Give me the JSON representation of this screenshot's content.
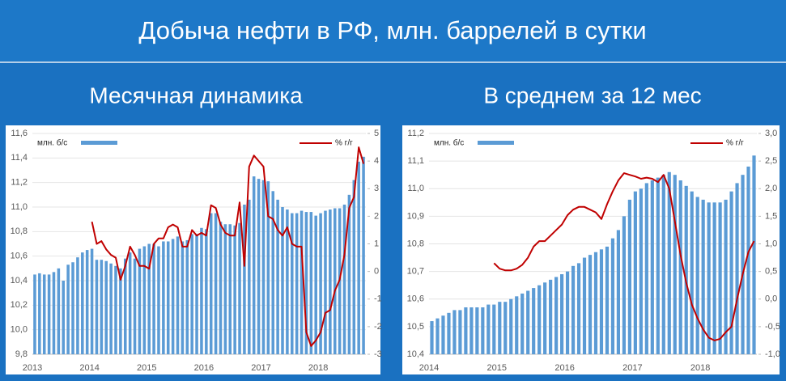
{
  "title": "Добыча нефти в РФ, млн. баррелей в сутки",
  "chart_data": [
    {
      "type": "bar-line",
      "title": "Месячная динамика",
      "categories": [
        "2013",
        null,
        null,
        null,
        null,
        null,
        null,
        null,
        null,
        null,
        null,
        null,
        "2014",
        null,
        null,
        null,
        null,
        null,
        null,
        null,
        null,
        null,
        null,
        null,
        "2015",
        null,
        null,
        null,
        null,
        null,
        null,
        null,
        null,
        null,
        null,
        null,
        "2016",
        null,
        null,
        null,
        null,
        null,
        null,
        null,
        null,
        null,
        null,
        null,
        "2017",
        null,
        null,
        null,
        null,
        null,
        null,
        null,
        null,
        null,
        null,
        null,
        "2018",
        null,
        null,
        null,
        null,
        null,
        null,
        null,
        null,
        null
      ],
      "series": [
        {
          "name": "млн. б/с",
          "color": "#5b9bd5",
          "kind": "bar",
          "values": [
            10.45,
            10.46,
            10.45,
            10.45,
            10.47,
            10.5,
            10.4,
            10.53,
            10.55,
            10.59,
            10.63,
            10.65,
            10.66,
            10.57,
            10.57,
            10.56,
            10.54,
            10.52,
            10.5,
            10.58,
            10.63,
            10.58,
            10.66,
            10.68,
            10.7,
            10.7,
            10.68,
            10.72,
            10.72,
            10.74,
            10.76,
            10.72,
            10.73,
            10.78,
            10.78,
            10.83,
            10.82,
            10.95,
            10.95,
            10.88,
            10.86,
            10.86,
            10.85,
            10.87,
            11.02,
            11.06,
            11.25,
            11.23,
            11.22,
            11.21,
            11.13,
            11.06,
            11.0,
            10.98,
            10.95,
            10.95,
            10.97,
            10.96,
            10.96,
            10.93,
            10.95,
            10.97,
            10.98,
            10.99,
            10.99,
            11.02,
            11.1,
            11.22,
            11.37,
            11.41
          ]
        },
        {
          "name": "% г/г",
          "color": "#c00000",
          "kind": "line",
          "axis": "y2",
          "values": [
            null,
            null,
            null,
            null,
            null,
            null,
            null,
            null,
            null,
            null,
            null,
            null,
            1.8,
            1.0,
            1.1,
            0.8,
            0.6,
            0.5,
            -0.3,
            0.2,
            0.9,
            0.6,
            0.2,
            0.2,
            0.1,
            1.0,
            1.2,
            1.2,
            1.6,
            1.7,
            1.6,
            0.9,
            0.9,
            1.5,
            1.3,
            1.4,
            1.3,
            2.4,
            2.3,
            1.7,
            1.4,
            1.3,
            1.3,
            2.5,
            0.2,
            3.8,
            4.2,
            4.0,
            3.8,
            2.0,
            1.9,
            1.5,
            1.3,
            1.6,
            1.0,
            0.9,
            0.9,
            -2.2,
            -2.7,
            -2.5,
            -2.2,
            -1.5,
            -1.4,
            -0.7,
            -0.3,
            0.6,
            2.3,
            2.7,
            4.5,
            3.9
          ]
        }
      ],
      "ylim": [
        9.8,
        11.6
      ],
      "yticks": [
        {
          "value": 9.8,
          "label": "9,8"
        },
        {
          "value": 10.0,
          "label": "10,0"
        },
        {
          "value": 10.2,
          "label": "10,2"
        },
        {
          "value": 10.4,
          "label": "10,4"
        },
        {
          "value": 10.6,
          "label": "10,6"
        },
        {
          "value": 10.8,
          "label": "10,8"
        },
        {
          "value": 11.0,
          "label": "11,0"
        },
        {
          "value": 11.2,
          "label": "11,2"
        },
        {
          "value": 11.4,
          "label": "11,4"
        },
        {
          "value": 11.6,
          "label": "11,6"
        }
      ],
      "y2lim": [
        -3,
        5
      ],
      "y2ticks": [
        -3,
        -2,
        -1,
        0,
        1,
        2,
        3,
        4,
        5
      ],
      "grid": true
    },
    {
      "type": "bar-line",
      "title": "В среднем за 12 мес",
      "categories": [
        "2014",
        null,
        null,
        null,
        null,
        null,
        null,
        null,
        null,
        null,
        null,
        null,
        "2015",
        null,
        null,
        null,
        null,
        null,
        null,
        null,
        null,
        null,
        null,
        null,
        "2016",
        null,
        null,
        null,
        null,
        null,
        null,
        null,
        null,
        null,
        null,
        null,
        "2017",
        null,
        null,
        null,
        null,
        null,
        null,
        null,
        null,
        null,
        null,
        null,
        "2018",
        null,
        null,
        null,
        null,
        null,
        null,
        null,
        null,
        null
      ],
      "series": [
        {
          "name": "млн. б/с",
          "color": "#5b9bd5",
          "kind": "bar",
          "values": [
            10.52,
            10.53,
            10.54,
            10.55,
            10.56,
            10.56,
            10.57,
            10.57,
            10.57,
            10.57,
            10.58,
            10.58,
            10.59,
            10.59,
            10.6,
            10.61,
            10.62,
            10.63,
            10.64,
            10.65,
            10.66,
            10.67,
            10.68,
            10.69,
            10.7,
            10.72,
            10.73,
            10.75,
            10.76,
            10.77,
            10.78,
            10.79,
            10.82,
            10.85,
            10.9,
            10.96,
            10.99,
            11.0,
            11.02,
            11.03,
            11.04,
            11.05,
            11.06,
            11.05,
            11.03,
            11.01,
            10.99,
            10.97,
            10.96,
            10.95,
            10.95,
            10.95,
            10.96,
            10.99,
            11.02,
            11.05,
            11.08,
            11.12
          ]
        },
        {
          "name": "% г/г",
          "color": "#c00000",
          "kind": "line",
          "axis": "y2",
          "values": [
            null,
            null,
            null,
            null,
            null,
            null,
            null,
            null,
            null,
            null,
            null,
            0.65,
            0.55,
            0.52,
            0.52,
            0.55,
            0.62,
            0.75,
            0.95,
            1.05,
            1.05,
            1.15,
            1.25,
            1.35,
            1.52,
            1.62,
            1.67,
            1.67,
            1.62,
            1.57,
            1.45,
            1.72,
            1.95,
            2.15,
            2.28,
            2.25,
            2.22,
            2.18,
            2.2,
            2.18,
            2.12,
            2.25,
            2.0,
            1.4,
            0.8,
            0.3,
            -0.1,
            -0.35,
            -0.55,
            -0.7,
            -0.75,
            -0.72,
            -0.6,
            -0.5,
            0.0,
            0.45,
            0.85,
            1.05
          ]
        }
      ],
      "ylim": [
        10.4,
        11.2
      ],
      "yticks": [
        {
          "value": 10.4,
          "label": "10,4"
        },
        {
          "value": 10.5,
          "label": "10,5"
        },
        {
          "value": 10.6,
          "label": "10,6"
        },
        {
          "value": 10.7,
          "label": "10,7"
        },
        {
          "value": 10.8,
          "label": "10,8"
        },
        {
          "value": 10.9,
          "label": "10,9"
        },
        {
          "value": 11.0,
          "label": "11,0"
        },
        {
          "value": 11.1,
          "label": "11,1"
        },
        {
          "value": 11.2,
          "label": "11,2"
        }
      ],
      "y2lim": [
        -1.0,
        3.0
      ],
      "y2ticks": [
        {
          "value": -1.0,
          "label": "-1,0"
        },
        {
          "value": -0.5,
          "label": "-0,5"
        },
        {
          "value": 0.0,
          "label": "0,0"
        },
        {
          "value": 0.5,
          "label": "0,5"
        },
        {
          "value": 1.0,
          "label": "1,0"
        },
        {
          "value": 1.5,
          "label": "1,5"
        },
        {
          "value": 2.0,
          "label": "2,0"
        },
        {
          "value": 2.5,
          "label": "2,5"
        },
        {
          "value": 3.0,
          "label": "3,0"
        }
      ],
      "grid": true
    }
  ]
}
